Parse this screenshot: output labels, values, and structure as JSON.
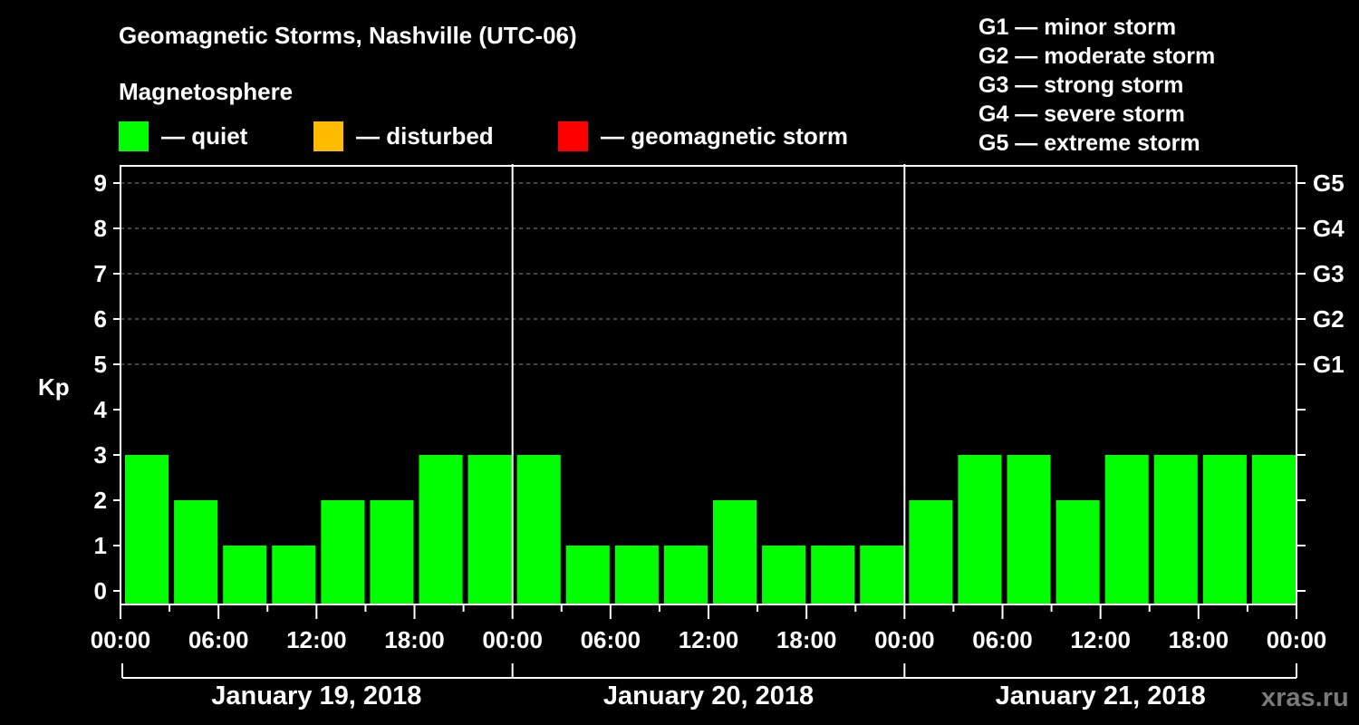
{
  "header": {
    "title": "Geomagnetic Storms, Nashville (UTC-06)",
    "subtitle": "Magnetosphere"
  },
  "legend": [
    {
      "label": "— quiet",
      "color": "#00ff00"
    },
    {
      "label": "— disturbed",
      "color": "#ffbb00"
    },
    {
      "label": "— geomagnetic storm",
      "color": "#ff0000"
    }
  ],
  "g_scale_legend": [
    "G1 — minor storm",
    "G2 — moderate storm",
    "G3 — strong storm",
    "G4 — severe storm",
    "G5 — extreme storm"
  ],
  "watermark": "xras.ru",
  "chart_data": {
    "type": "bar",
    "title": "Geomagnetic Storms, Nashville (UTC-06)",
    "xlabel": "",
    "ylabel": "Kp",
    "ylim": [
      0,
      9
    ],
    "y_ticks": [
      "0",
      "1",
      "2",
      "3",
      "4",
      "5",
      "6",
      "7",
      "8",
      "9"
    ],
    "right_axis_ticks": [
      {
        "kp": 5,
        "label": "G1"
      },
      {
        "kp": 6,
        "label": "G2"
      },
      {
        "kp": 7,
        "label": "G3"
      },
      {
        "kp": 8,
        "label": "G4"
      },
      {
        "kp": 9,
        "label": "G5"
      }
    ],
    "x_tick_labels": [
      "00:00",
      "06:00",
      "12:00",
      "18:00",
      "00:00",
      "06:00",
      "12:00",
      "18:00",
      "00:00",
      "06:00",
      "12:00",
      "18:00",
      "00:00"
    ],
    "days": [
      "January 19, 2018",
      "January 20, 2018",
      "January 21, 2018"
    ],
    "interval_hours": 3,
    "grid": "dashed at Kp 5-9",
    "series": [
      {
        "name": "January 19, 2018",
        "values": [
          3,
          2,
          1,
          1,
          2,
          2,
          3,
          3
        ],
        "color": "#00ff00",
        "status": "quiet"
      },
      {
        "name": "January 20, 2018",
        "values": [
          3,
          1,
          1,
          1,
          2,
          1,
          1,
          1
        ],
        "color": "#00ff00",
        "status": "quiet"
      },
      {
        "name": "January 21, 2018",
        "values": [
          2,
          3,
          3,
          2,
          3,
          3,
          3,
          3
        ],
        "color": "#00ff00",
        "status": "quiet"
      }
    ]
  }
}
